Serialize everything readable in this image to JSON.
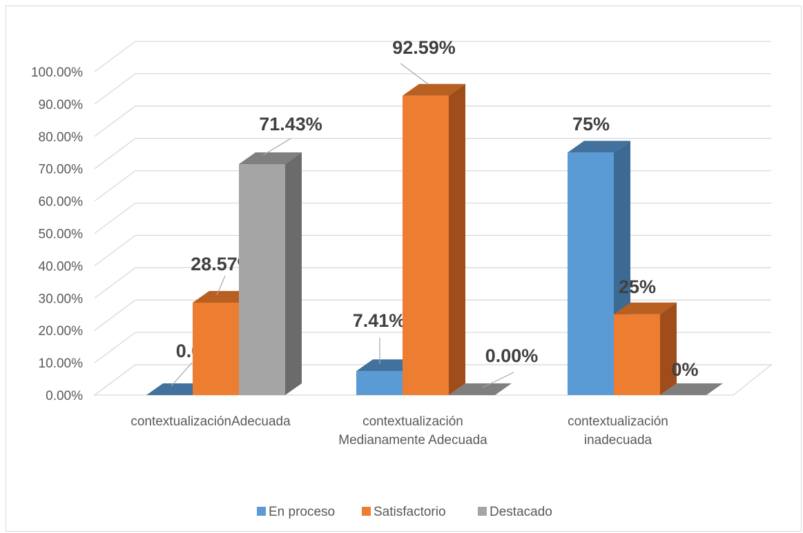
{
  "chart_data": {
    "type": "bar",
    "title": "",
    "xlabel": "",
    "ylabel": "",
    "ylim": [
      0,
      1
    ],
    "y_ticks": [
      "0.00%",
      "10.00%",
      "20.00%",
      "30.00%",
      "40.00%",
      "50.00%",
      "60.00%",
      "70.00%",
      "80.00%",
      "90.00%",
      "100.00%"
    ],
    "categories": [
      [
        "contextualizaciónAdecuada"
      ],
      [
        "contextualización",
        "Medianamente Adecuada"
      ],
      [
        "contextualización",
        "inadecuada"
      ]
    ],
    "series": [
      {
        "name": "En proceso",
        "color": "#5b9bd5",
        "side": "#3d6a92",
        "top": "#41719c",
        "values": [
          0.0,
          0.0741,
          0.75
        ],
        "labels": [
          "0.00%",
          "7.41%",
          "75%"
        ]
      },
      {
        "name": "Satisfactorio",
        "color": "#ed7d31",
        "side": "#9e4d1b",
        "top": "#b85f22",
        "values": [
          0.2857,
          0.9259,
          0.25
        ],
        "labels": [
          "28.57%",
          "92.59%",
          "25%"
        ]
      },
      {
        "name": "Destacado",
        "color": "#a5a5a5",
        "side": "#6b6b6b",
        "top": "#7f7f7f",
        "values": [
          0.7143,
          0.0,
          0.0
        ],
        "labels": [
          "71.43%",
          "0.00%",
          "0%"
        ]
      }
    ],
    "grid": true,
    "legend": "bottom",
    "style": "3d-column"
  }
}
